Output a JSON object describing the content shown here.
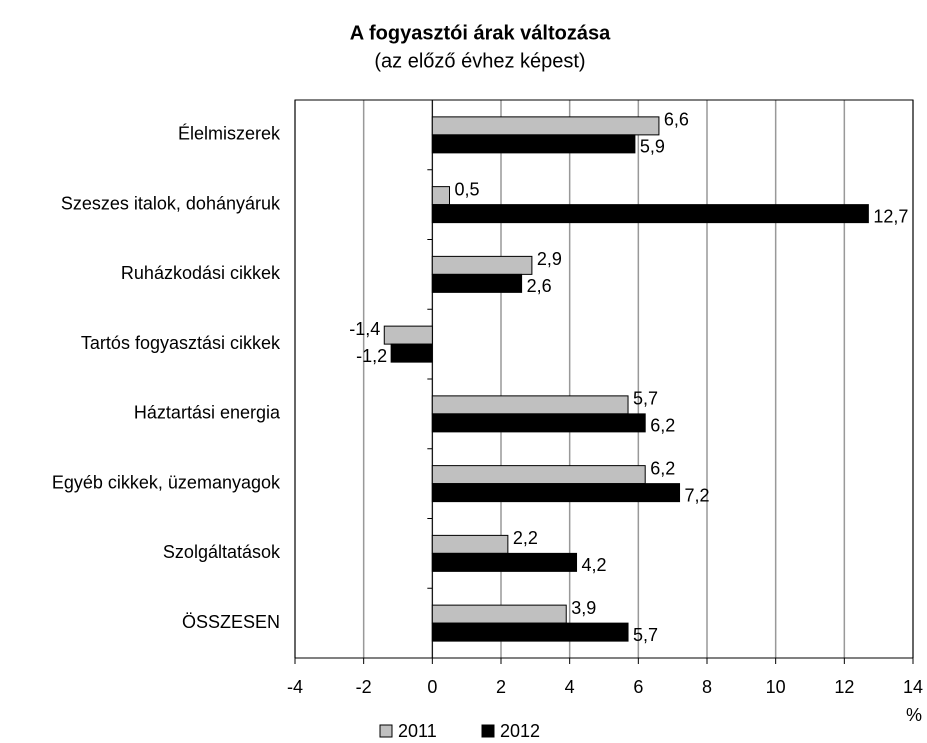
{
  "chart_data": {
    "type": "bar",
    "orientation": "horizontal",
    "title": "A fogyasztói árak változása",
    "subtitle": "(az előző évhez képest)",
    "x_label": "%",
    "categories": [
      "Élelmiszerek",
      "Szeszes italok, dohányáruk",
      "Ruházkodási cikkek",
      "Tartós fogyasztási cikkek",
      "Háztartási energia",
      "Egyéb cikkek, üzemanyagok",
      "Szolgáltatások",
      "ÖSSZESEN"
    ],
    "series": [
      {
        "name": "2011",
        "color": "#c0c0c0",
        "values": [
          6.6,
          0.5,
          2.9,
          -1.4,
          5.7,
          6.2,
          2.2,
          3.9
        ],
        "value_labels": [
          "6,6",
          "0,5",
          "2,9",
          "-1,4",
          "5,7",
          "6,2",
          "2,2",
          "3,9"
        ]
      },
      {
        "name": "2012",
        "color": "#000000",
        "values": [
          5.9,
          12.7,
          2.6,
          -1.2,
          6.2,
          7.2,
          4.2,
          5.7
        ],
        "value_labels": [
          "5,9",
          "12,7",
          "2,6",
          "-1,2",
          "6,2",
          "7,2",
          "4,2",
          "5,7"
        ]
      }
    ],
    "xlim": [
      -4,
      14
    ],
    "xticks": [
      -4,
      -2,
      0,
      2,
      4,
      6,
      8,
      10,
      12,
      14
    ],
    "grid": true,
    "legend": "bottom"
  }
}
